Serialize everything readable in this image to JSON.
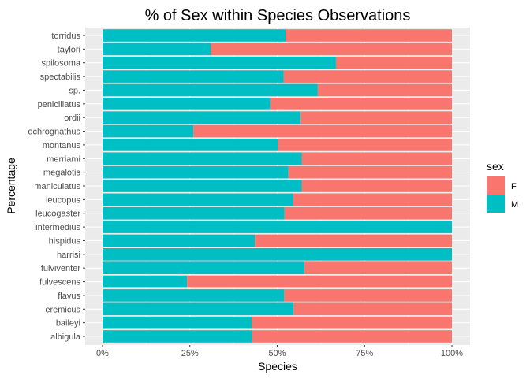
{
  "chart_data": {
    "type": "bar",
    "orientation": "horizontal",
    "stacked": "percent",
    "title": "% of Sex within Species Observations",
    "xlabel": "Species",
    "ylabel": "Percentage",
    "xlim": [
      0,
      1
    ],
    "x_ticks": [
      "0%",
      "25%",
      "50%",
      "75%",
      "100%"
    ],
    "categories": [
      "torridus",
      "taylori",
      "spilosoma",
      "spectabilis",
      "sp.",
      "penicillatus",
      "ordii",
      "ochrognathus",
      "montanus",
      "merriami",
      "megalotis",
      "maniculatus",
      "leucopus",
      "leucogaster",
      "intermedius",
      "hispidus",
      "harrisi",
      "fulviventer",
      "fulvescens",
      "flavus",
      "eremicus",
      "baileyi",
      "albigula"
    ],
    "series": [
      {
        "name": "M",
        "color": "#00BFC4",
        "values": [
          0.524,
          0.31,
          0.668,
          0.518,
          0.616,
          0.48,
          0.567,
          0.26,
          0.502,
          0.57,
          0.532,
          0.57,
          0.546,
          0.521,
          1.0,
          0.436,
          1.0,
          0.578,
          0.242,
          0.52,
          0.547,
          0.427,
          0.428
        ]
      },
      {
        "name": "F",
        "color": "#F8766D",
        "values": [
          0.476,
          0.69,
          0.332,
          0.482,
          0.384,
          0.52,
          0.433,
          0.74,
          0.498,
          0.43,
          0.468,
          0.43,
          0.454,
          0.479,
          0.0,
          0.564,
          0.0,
          0.422,
          0.758,
          0.48,
          0.453,
          0.573,
          0.572
        ]
      }
    ],
    "legend": {
      "title": "sex",
      "placement": "right",
      "entries": [
        {
          "label": "F",
          "color": "#F8766D"
        },
        {
          "label": "M",
          "color": "#00BFC4"
        }
      ]
    },
    "grid": true,
    "panel_background": "#EBEBEB"
  }
}
